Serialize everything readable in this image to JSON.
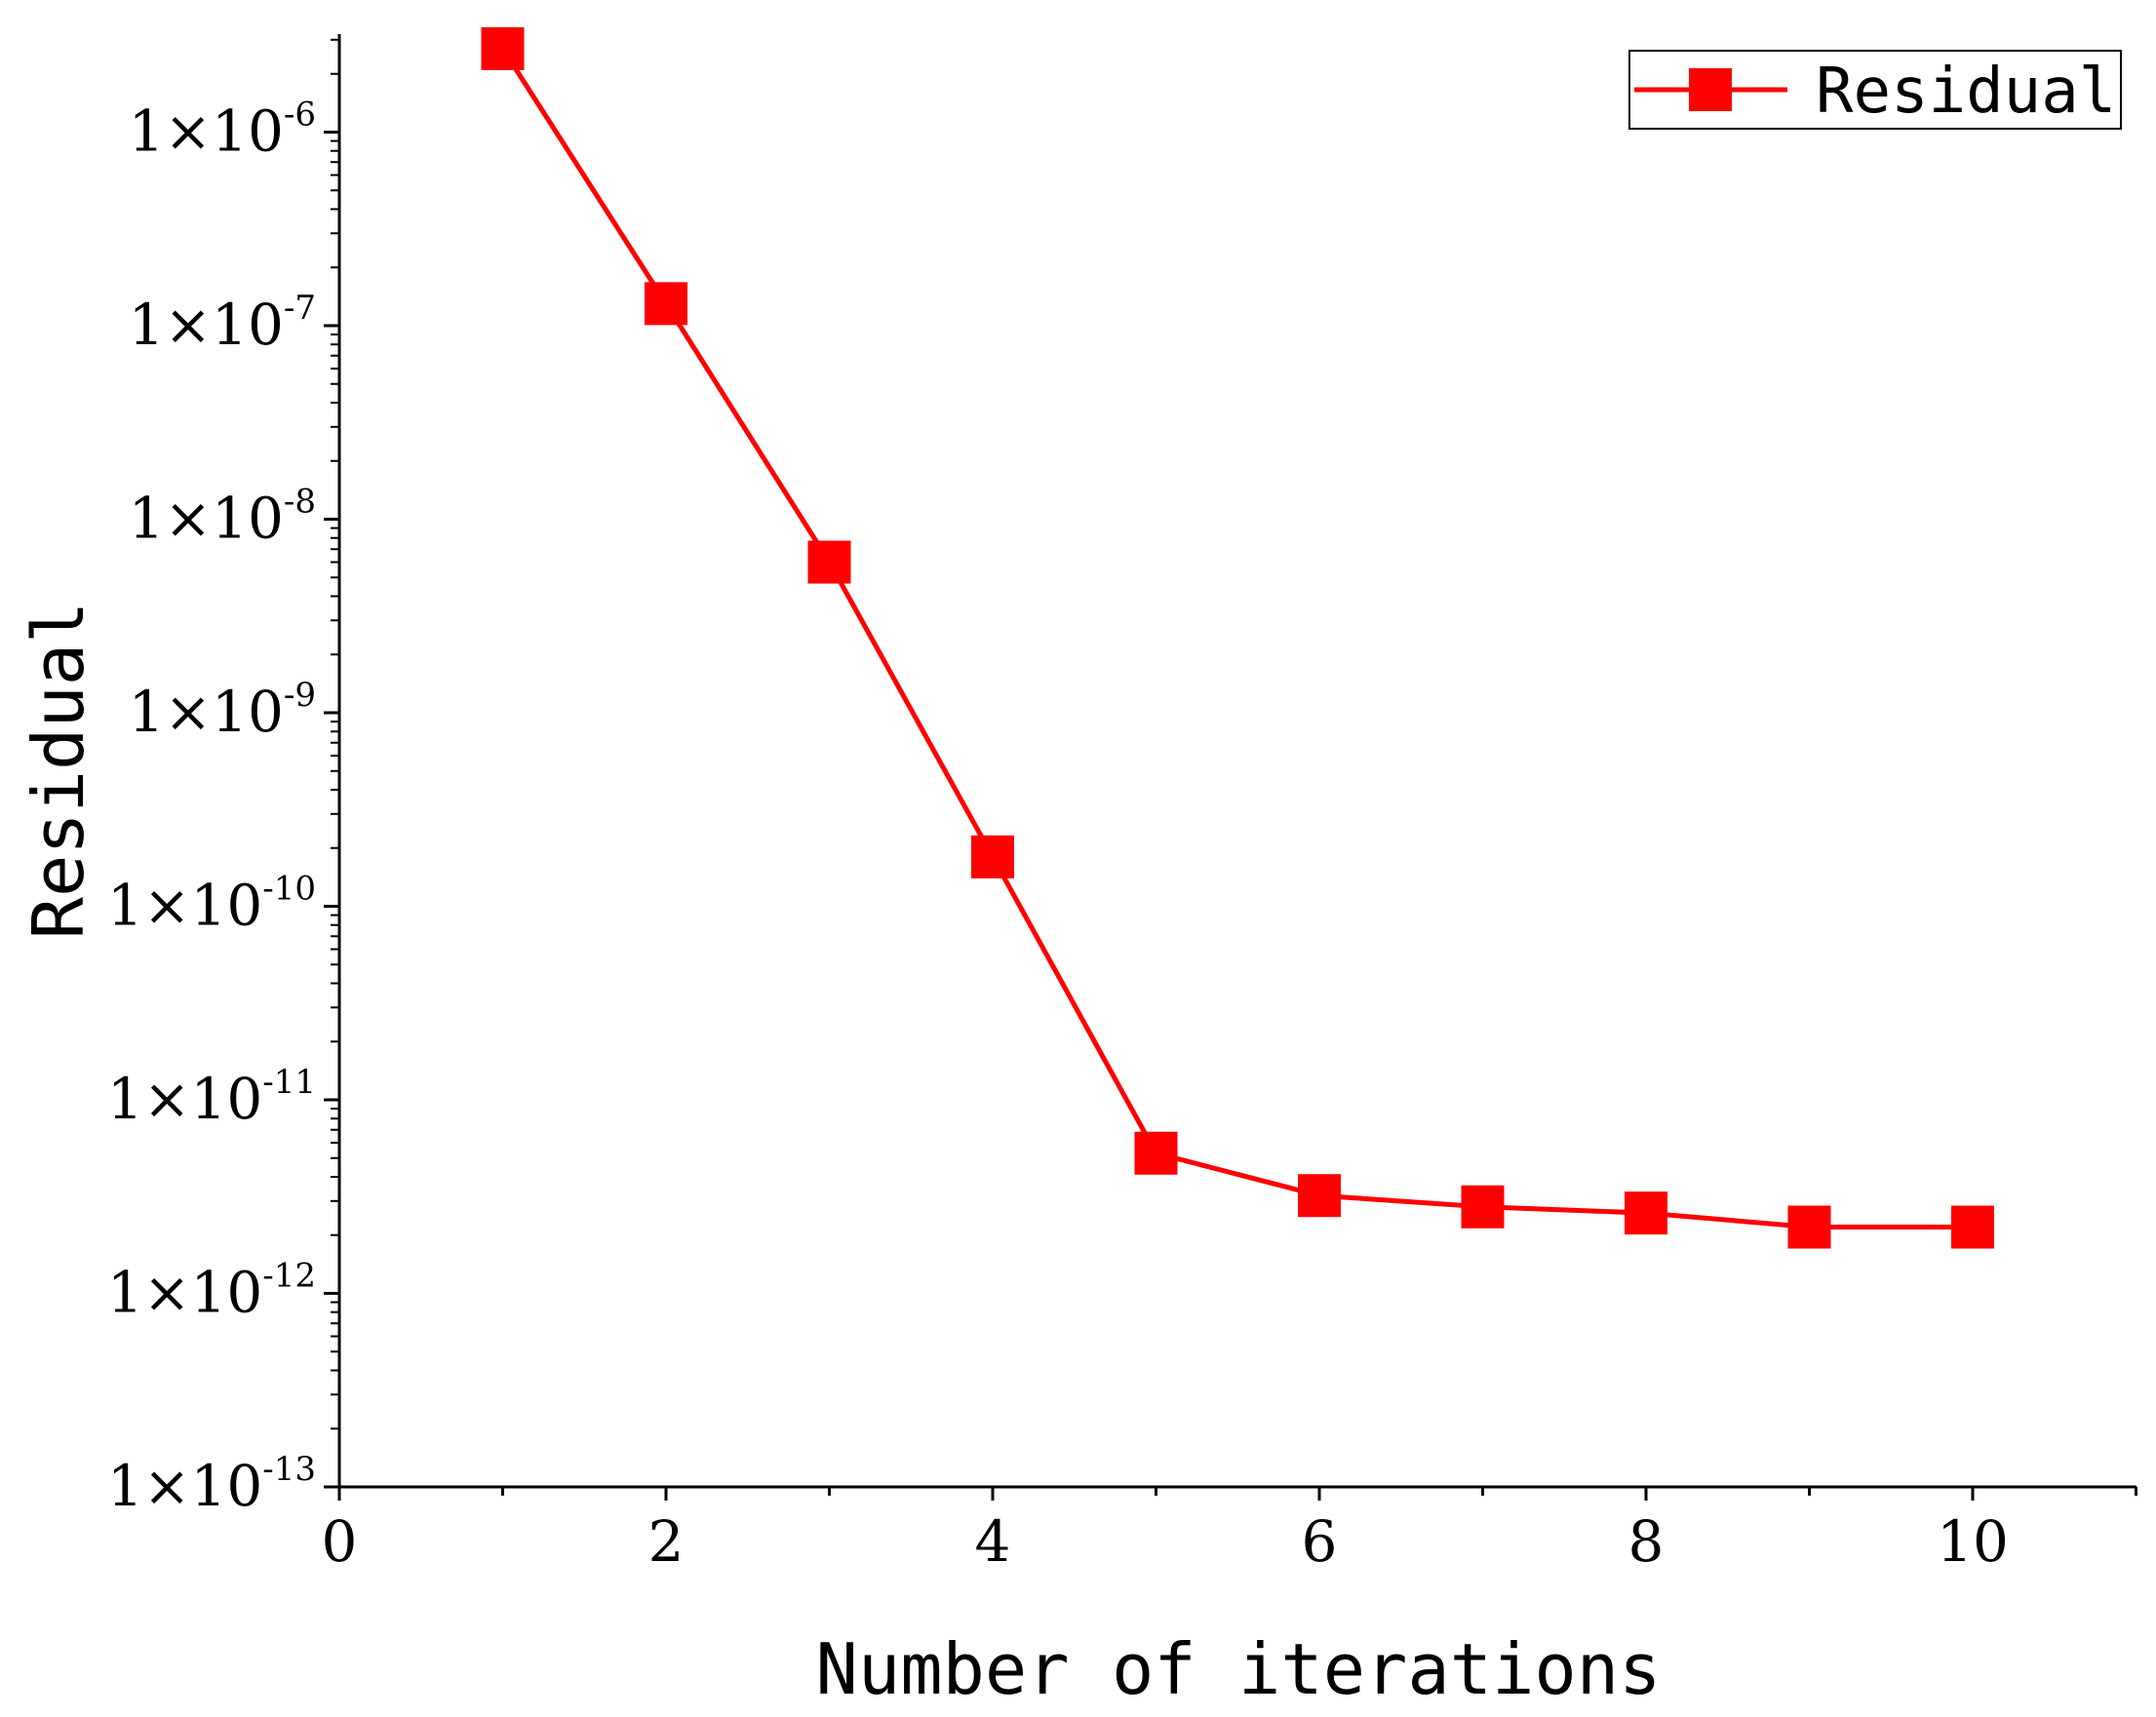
{
  "chart_data": {
    "type": "line",
    "xlabel": "Number of iterations",
    "ylabel": "Residual",
    "xlim": [
      0,
      11
    ],
    "ylim": [
      1e-13,
      3e-06
    ],
    "y_scale": "log",
    "x_ticks": [
      0,
      2,
      4,
      6,
      8,
      10
    ],
    "x_tick_labels": [
      "0",
      "2",
      "4",
      "6",
      "8",
      "10"
    ],
    "y_ticks": [
      1e-06,
      1e-07,
      1e-08,
      1e-09,
      1e-10,
      1e-11,
      1e-12,
      1e-13
    ],
    "y_tick_labels": [
      {
        "mantissa": "1×10",
        "exponent": "-6"
      },
      {
        "mantissa": "1×10",
        "exponent": "-7"
      },
      {
        "mantissa": "1×10",
        "exponent": "-8"
      },
      {
        "mantissa": "1×10",
        "exponent": "-9"
      },
      {
        "mantissa": "1×10",
        "exponent": "-10"
      },
      {
        "mantissa": "1×10",
        "exponent": "-11"
      },
      {
        "mantissa": "1×10",
        "exponent": "-12"
      },
      {
        "mantissa": "1×10",
        "exponent": "-13"
      }
    ],
    "grid": false,
    "legend_position": "top-right",
    "series": [
      {
        "name": "Residual",
        "color": "#ff0000",
        "marker": "square",
        "x": [
          1,
          2,
          3,
          4,
          5,
          6,
          7,
          8,
          9,
          10
        ],
        "y": [
          2.7e-06,
          1.3e-07,
          6e-09,
          1.8e-10,
          5.3e-12,
          3.2e-12,
          2.8e-12,
          2.6e-12,
          2.2e-12,
          2.2e-12
        ]
      }
    ]
  }
}
